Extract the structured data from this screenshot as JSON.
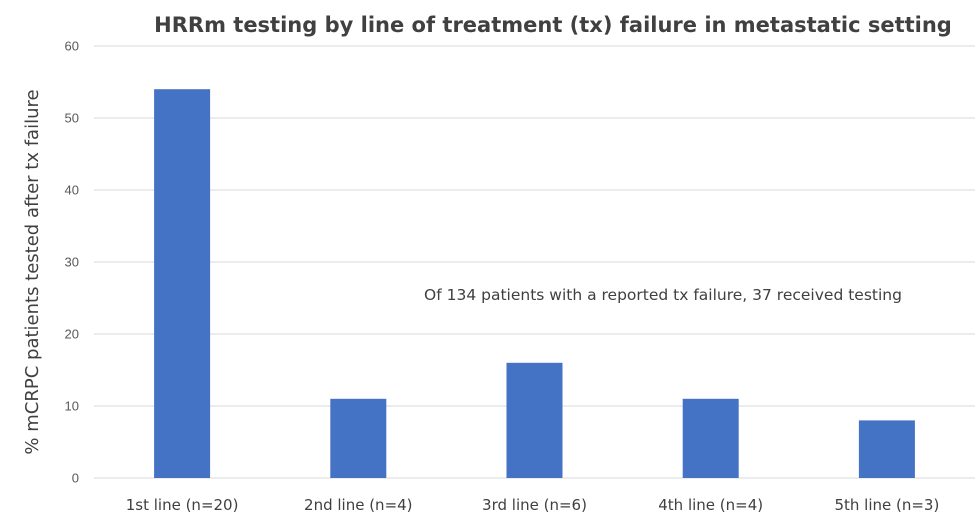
{
  "chart_data": {
    "type": "bar",
    "title": "HRRm testing by line of treatment (tx) failure in metastatic setting",
    "xlabel": "",
    "ylabel": "% mCRPC patients tested after tx failure",
    "categories": [
      "1st line (n=20)",
      "2nd line (n=4)",
      "3rd line (n=6)",
      "4th line (n=4)",
      "5th line (n=3)"
    ],
    "values": [
      54,
      11,
      16,
      11,
      8
    ],
    "ylim": [
      0,
      60
    ],
    "yticks": [
      0,
      10,
      20,
      30,
      40,
      50,
      60
    ],
    "grid": true,
    "legend": "none",
    "bar_color": "#4472c4",
    "annotation": "Of 134 patients with a reported tx failure, 37 received testing"
  }
}
